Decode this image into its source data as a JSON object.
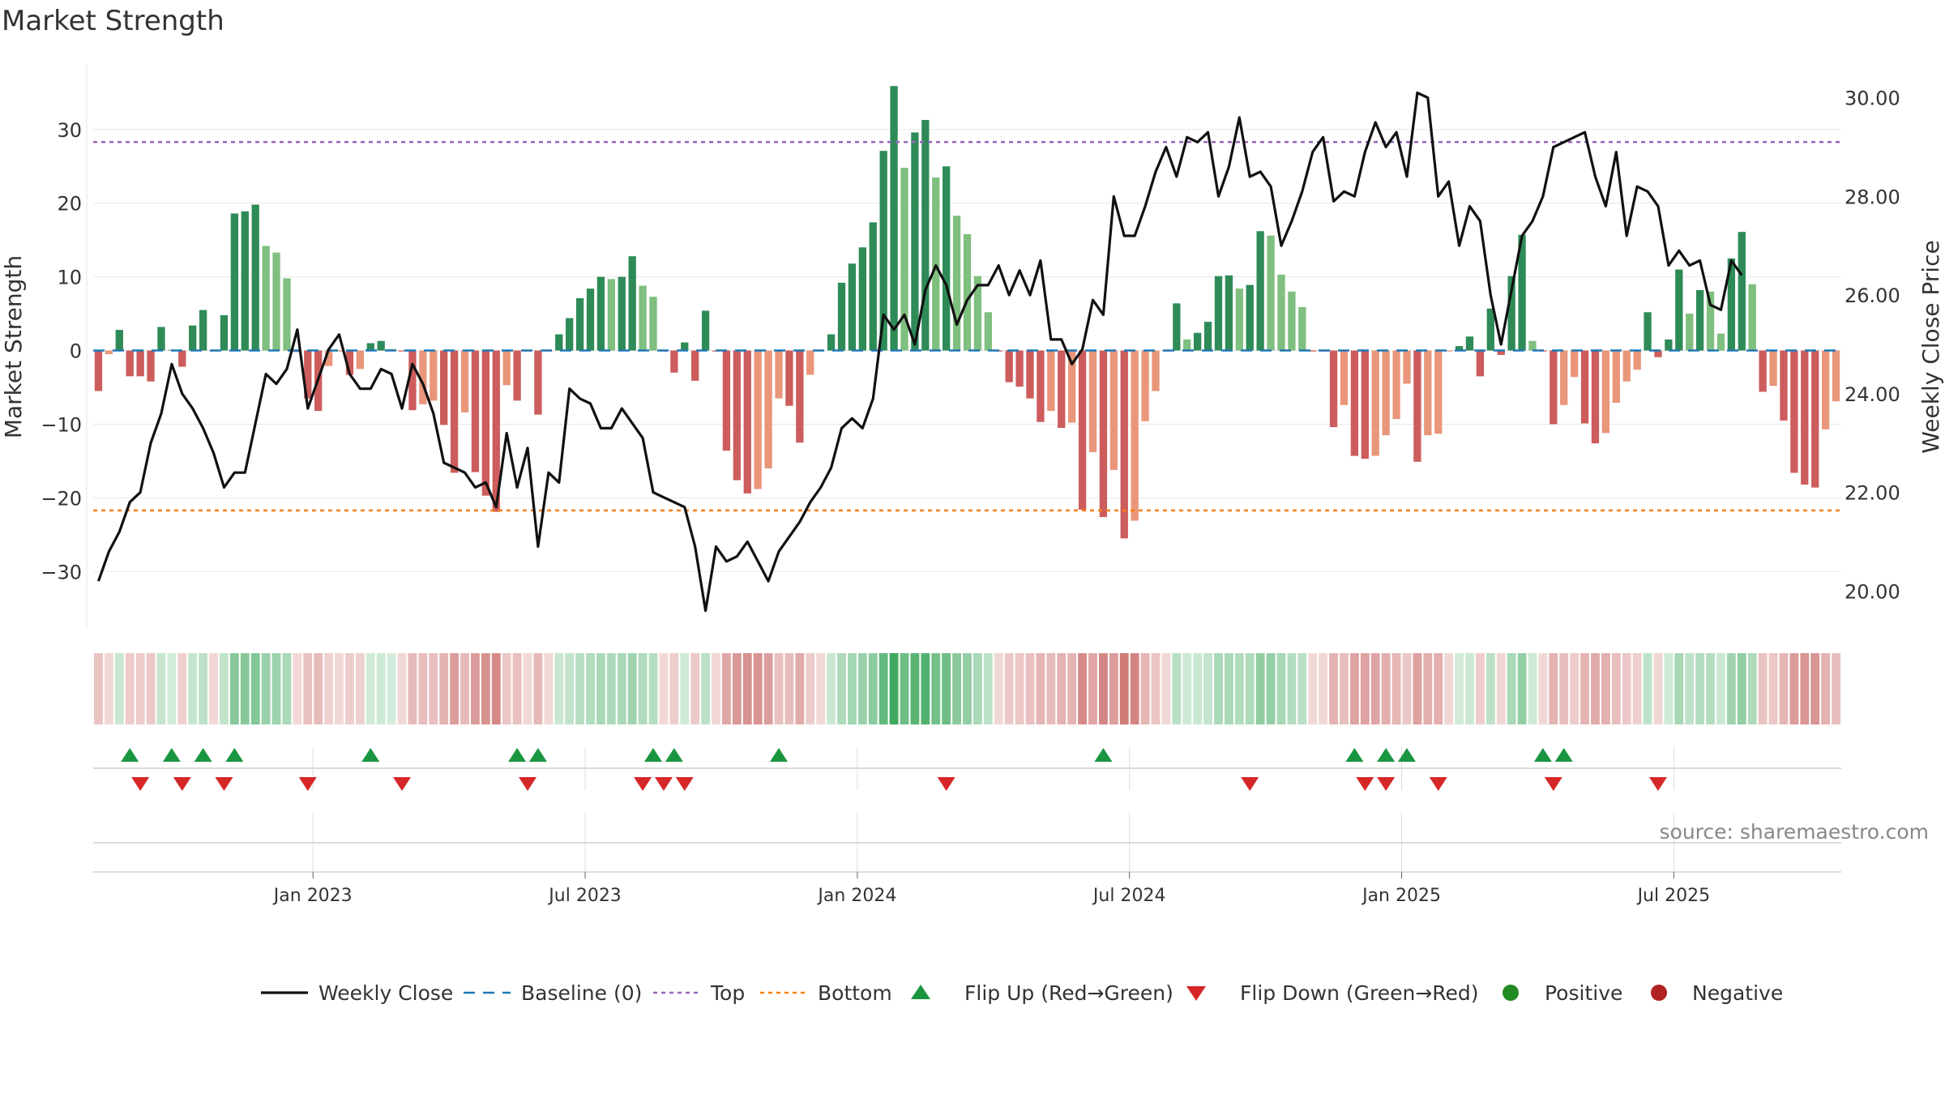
{
  "title": "Market Strength",
  "source": "source: sharemaestro.com",
  "colors": {
    "pos_dark": "#2e8b57",
    "pos_light": "#7fbf7f",
    "neg_dark": "#cd5c5c",
    "neg_light": "#e9967a",
    "line": "#111111",
    "baseline": "#1f77b4",
    "top": "#9467bd",
    "bottom": "#ff7f0e",
    "flip_up": "#1a9641",
    "flip_down": "#d62728",
    "positive": "#228b22",
    "negative": "#b22222"
  },
  "chart_data": {
    "type": "bar",
    "title": "Market Strength",
    "ylabel": "Market Strength",
    "y2label": "Weekly Close Price",
    "ylim": [
      -38,
      39
    ],
    "y2lim": [
      19.2,
      30.7
    ],
    "yticks": [
      -30,
      -20,
      -10,
      0,
      10,
      20,
      30
    ],
    "y2ticks": [
      20,
      22,
      24,
      26,
      28,
      30
    ],
    "y2ticklabels": [
      "20.00",
      "22.00",
      "24.00",
      "26.00",
      "28.00",
      "30.00"
    ],
    "top_line": 28.3,
    "bottom_line": -21.7,
    "x_start": "2022-08-08",
    "x_end": "2025-09-01",
    "x_tick_labels": [
      "Jan 2023",
      "Jul 2023",
      "Jan 2024",
      "Jul 2024",
      "Jan 2025",
      "Jul 2025"
    ],
    "x_tick_weeks": [
      21,
      47,
      73,
      99,
      125,
      151
    ],
    "strength": [
      -5.5,
      -0.5,
      2.8,
      -3.5,
      -3.5,
      -4.2,
      3.2,
      0.1,
      -2.2,
      3.4,
      5.5,
      -0.1,
      4.8,
      18.6,
      18.9,
      19.8,
      14.2,
      13.3,
      9.8,
      -0.2,
      -6.5,
      -8.2,
      -2.1,
      -0.1,
      -3.3,
      -2.5,
      1.0,
      1.3,
      0.2,
      -0.1,
      -8.1,
      -7.3,
      -6.8,
      -10.1,
      -16.6,
      -8.4,
      -16.5,
      -19.7,
      -21.9,
      -4.7,
      -6.8,
      -0.1,
      -8.7,
      -0.1,
      2.2,
      4.4,
      7.1,
      8.4,
      10.0,
      9.7,
      10.0,
      12.8,
      8.8,
      7.3,
      -0.1,
      -3.0,
      1.1,
      -4.1,
      5.4,
      -0.1,
      -13.6,
      -17.6,
      -19.4,
      -18.8,
      -16.0,
      -6.5,
      -7.5,
      -12.5,
      -3.3,
      -0.1,
      2.2,
      9.2,
      11.8,
      14.0,
      17.4,
      27.1,
      35.9,
      24.8,
      29.6,
      31.3,
      23.5,
      25.0,
      18.3,
      15.8,
      10.1,
      5.2,
      -0.1,
      -4.3,
      -4.9,
      -6.5,
      -9.7,
      -8.2,
      -10.5,
      -9.8,
      -21.6,
      -13.8,
      -22.6,
      -16.2,
      -25.5,
      -23.1,
      -9.6,
      -5.5,
      -0.1,
      6.4,
      1.5,
      2.4,
      3.9,
      10.1,
      10.2,
      8.4,
      8.9,
      16.2,
      15.6,
      10.3,
      8.0,
      5.9,
      -0.1,
      -0.1,
      -10.4,
      -7.4,
      -14.3,
      -14.7,
      -14.3,
      -11.5,
      -9.3,
      -4.5,
      -15.1,
      -11.5,
      -11.3,
      -0.1,
      0.6,
      1.9,
      -3.5,
      5.7,
      -0.6,
      10.1,
      15.7,
      1.3,
      -0.1,
      -10.0,
      -7.4,
      -3.6,
      -9.9,
      -12.6,
      -11.2,
      -7.1,
      -4.2,
      -2.6,
      5.2,
      -0.9,
      1.5,
      11.0,
      5.0,
      8.2,
      8.0,
      2.3,
      12.5,
      16.1,
      9.0,
      -5.6,
      -4.8,
      -9.5,
      -16.6,
      -18.2,
      -18.6,
      -10.7,
      -6.9
    ],
    "weekly_close": [
      20.2,
      20.8,
      21.2,
      21.8,
      22.0,
      23.0,
      23.6,
      24.6,
      24.0,
      23.7,
      23.3,
      22.8,
      22.1,
      22.4,
      22.4,
      23.4,
      24.4,
      24.2,
      24.5,
      25.3,
      23.7,
      24.3,
      24.9,
      25.2,
      24.4,
      24.1,
      24.1,
      24.5,
      24.4,
      23.7,
      24.6,
      24.2,
      23.6,
      22.6,
      22.5,
      22.4,
      22.1,
      22.2,
      21.7,
      23.2,
      22.1,
      22.9,
      20.9,
      22.4,
      22.2,
      24.1,
      23.9,
      23.8,
      23.3,
      23.3,
      23.7,
      23.4,
      23.1,
      22.0,
      21.9,
      21.8,
      21.7,
      20.9,
      19.6,
      20.9,
      20.6,
      20.7,
      21.0,
      20.6,
      20.2,
      20.8,
      21.1,
      21.4,
      21.8,
      22.1,
      22.5,
      23.3,
      23.5,
      23.3,
      23.9,
      25.6,
      25.3,
      25.6,
      25.0,
      26.1,
      26.6,
      26.2,
      25.4,
      25.9,
      26.2,
      26.2,
      26.6,
      26.0,
      26.5,
      26.0,
      26.7,
      25.1,
      25.1,
      24.6,
      24.9,
      25.9,
      25.6,
      28.0,
      27.2,
      27.2,
      27.8,
      28.5,
      29.0,
      28.4,
      29.2,
      29.1,
      29.3,
      28.0,
      28.6,
      29.6,
      28.4,
      28.5,
      28.2,
      27.0,
      27.5,
      28.1,
      28.9,
      29.2,
      27.9,
      28.1,
      28.0,
      28.9,
      29.5,
      29.0,
      29.3,
      28.4,
      30.1,
      30.0,
      28.0,
      28.3,
      27.0,
      27.8,
      27.5,
      26.0,
      25.0,
      26.1,
      27.2,
      27.5,
      28.0,
      29.0,
      29.1,
      29.2,
      29.3,
      28.4,
      27.8,
      28.9,
      27.2,
      28.2,
      28.1,
      27.8,
      26.6,
      26.9,
      26.6,
      26.7,
      25.8,
      25.7,
      26.7,
      26.4
    ],
    "flip_up_weeks": [
      3,
      7,
      10,
      13,
      26,
      40,
      42,
      53,
      55,
      65,
      96,
      120,
      123,
      125,
      138,
      140
    ],
    "flip_down_weeks": [
      4,
      8,
      12,
      20,
      29,
      41,
      52,
      54,
      56,
      81,
      110,
      121,
      123,
      128,
      139,
      149
    ],
    "legend": [
      "Weekly Close",
      "Baseline (0)",
      "Top",
      "Bottom",
      "Flip Up (Red→Green)",
      "Flip Down (Green→Red)",
      "Positive",
      "Negative"
    ]
  }
}
